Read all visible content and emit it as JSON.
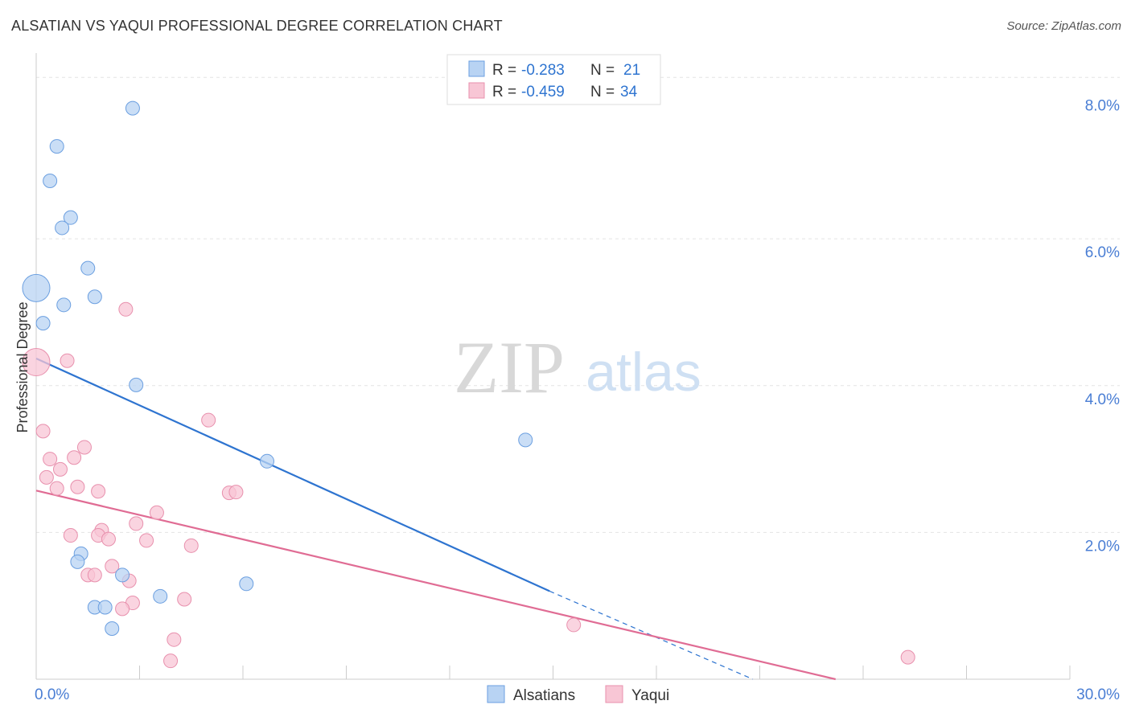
{
  "title": "ALSATIAN VS YAQUI PROFESSIONAL DEGREE CORRELATION CHART",
  "source": "Source: ZipAtlas.com",
  "watermark": {
    "zip": "ZIP",
    "atlas": "atlas"
  },
  "colors": {
    "alsatians_fill": "#b8d3f3",
    "alsatians_stroke": "#6b9fe0",
    "alsatians_line": "#2e74d0",
    "yaqui_fill": "#f8c6d5",
    "yaqui_stroke": "#e890ad",
    "yaqui_line": "#e06c94",
    "tick_text": "#4a7ed4",
    "grid": "#e4e4e4"
  },
  "legend_box": {
    "rows": [
      {
        "r_label": "R = ",
        "r_value": "-0.283",
        "n_label": "N = ",
        "n_value": "21"
      },
      {
        "r_label": "R = ",
        "r_value": "-0.459",
        "n_label": "N = ",
        "n_value": "34"
      }
    ]
  },
  "chart_data": {
    "type": "scatter",
    "xlabel": "",
    "ylabel": "Professional Degree",
    "xlim": [
      0,
      30
    ],
    "ylim": [
      0,
      8.4
    ],
    "x_tick_labels": [
      {
        "value": 0,
        "label": "0.0%"
      },
      {
        "value": 30,
        "label": "30.0%"
      }
    ],
    "y_tick_labels": [
      {
        "value": 2,
        "label": "2.0%"
      },
      {
        "value": 4,
        "label": "4.0%"
      },
      {
        "value": 6,
        "label": "6.0%"
      },
      {
        "value": 8,
        "label": "8.0%"
      }
    ],
    "x_minor_ticks": [
      3,
      6,
      9,
      12,
      15,
      18,
      21,
      24,
      27,
      30
    ],
    "y_gridlines": [
      2,
      4,
      6,
      8.2
    ],
    "series": [
      {
        "name": "Alsatians",
        "points": [
          {
            "x": 2.8,
            "y": 7.78
          },
          {
            "x": 0.6,
            "y": 7.26
          },
          {
            "x": 0.4,
            "y": 6.79
          },
          {
            "x": 1.0,
            "y": 6.29
          },
          {
            "x": 0.75,
            "y": 6.15
          },
          {
            "x": 1.5,
            "y": 5.6
          },
          {
            "x": 0.0,
            "y": 5.33,
            "big": true
          },
          {
            "x": 1.7,
            "y": 5.21
          },
          {
            "x": 0.8,
            "y": 5.1
          },
          {
            "x": 0.2,
            "y": 4.85
          },
          {
            "x": 2.9,
            "y": 4.01
          },
          {
            "x": 14.2,
            "y": 3.26
          },
          {
            "x": 6.7,
            "y": 2.97
          },
          {
            "x": 1.3,
            "y": 1.71
          },
          {
            "x": 1.2,
            "y": 1.6
          },
          {
            "x": 2.5,
            "y": 1.42
          },
          {
            "x": 6.1,
            "y": 1.3
          },
          {
            "x": 3.6,
            "y": 1.13
          },
          {
            "x": 1.7,
            "y": 0.98
          },
          {
            "x": 2.0,
            "y": 0.98
          },
          {
            "x": 2.2,
            "y": 0.69
          }
        ],
        "trend": {
          "x1": 0.0,
          "y1": 4.37,
          "x2": 14.9,
          "y2": 1.2,
          "dash_x2": 20.8,
          "dash_y2": 0.0
        }
      },
      {
        "name": "Yaqui",
        "points": [
          {
            "x": 2.6,
            "y": 5.04
          },
          {
            "x": 0.0,
            "y": 4.32,
            "big": true
          },
          {
            "x": 0.9,
            "y": 4.34
          },
          {
            "x": 5.0,
            "y": 3.53
          },
          {
            "x": 0.2,
            "y": 3.38
          },
          {
            "x": 1.4,
            "y": 3.16
          },
          {
            "x": 0.4,
            "y": 3.0
          },
          {
            "x": 1.1,
            "y": 3.02
          },
          {
            "x": 0.7,
            "y": 2.86
          },
          {
            "x": 0.3,
            "y": 2.75
          },
          {
            "x": 1.2,
            "y": 2.62
          },
          {
            "x": 0.6,
            "y": 2.6
          },
          {
            "x": 1.8,
            "y": 2.56
          },
          {
            "x": 5.6,
            "y": 2.54
          },
          {
            "x": 5.8,
            "y": 2.55
          },
          {
            "x": 3.5,
            "y": 2.27
          },
          {
            "x": 2.9,
            "y": 2.12
          },
          {
            "x": 1.9,
            "y": 2.03
          },
          {
            "x": 1.0,
            "y": 1.96
          },
          {
            "x": 1.8,
            "y": 1.96
          },
          {
            "x": 2.1,
            "y": 1.91
          },
          {
            "x": 3.2,
            "y": 1.89
          },
          {
            "x": 4.5,
            "y": 1.82
          },
          {
            "x": 2.2,
            "y": 1.54
          },
          {
            "x": 1.5,
            "y": 1.42
          },
          {
            "x": 1.7,
            "y": 1.42
          },
          {
            "x": 2.7,
            "y": 1.34
          },
          {
            "x": 4.3,
            "y": 1.09
          },
          {
            "x": 2.8,
            "y": 1.04
          },
          {
            "x": 2.5,
            "y": 0.96
          },
          {
            "x": 15.6,
            "y": 0.74
          },
          {
            "x": 4.0,
            "y": 0.54
          },
          {
            "x": 3.9,
            "y": 0.25
          },
          {
            "x": 25.3,
            "y": 0.3
          }
        ],
        "trend": {
          "x1": 0.0,
          "y1": 2.57,
          "x2": 23.2,
          "y2": 0.0
        }
      }
    ],
    "legend": [
      "Alsatians",
      "Yaqui"
    ]
  }
}
